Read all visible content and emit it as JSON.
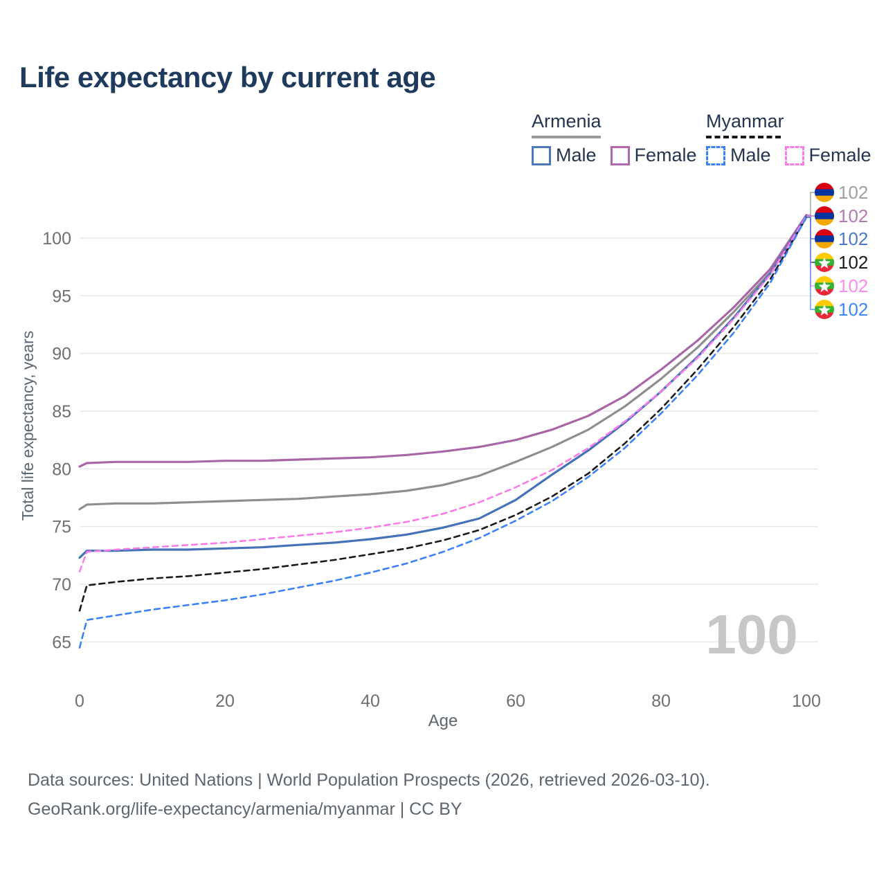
{
  "title": "Life expectancy by current age",
  "legend": {
    "groups": [
      {
        "key": "armenia",
        "country": "Armenia",
        "underline_color": "#9a9a9a",
        "underline_style": "solid",
        "items": [
          {
            "key": "armenia-male",
            "label": "Male",
            "color": "#4d79b8",
            "dashed": false
          },
          {
            "key": "armenia-female",
            "label": "Female",
            "color": "#b567ae",
            "dashed": false
          }
        ]
      },
      {
        "key": "myanmar",
        "country": "Myanmar",
        "underline_color": "#1a1a1a",
        "underline_style": "dashed",
        "items": [
          {
            "key": "myanmar-male",
            "label": "Male",
            "color": "#3b82f6",
            "dashed": true
          },
          {
            "key": "myanmar-female",
            "label": "Female",
            "color": "#fb7ce8",
            "dashed": true
          }
        ]
      }
    ]
  },
  "chart_data": {
    "type": "line",
    "title": "Life expectancy by current age",
    "xlabel": "Age",
    "ylabel": "Total life expectancy, years",
    "x_ticks": [
      0,
      20,
      40,
      60,
      80,
      100
    ],
    "y_ticks": [
      65,
      70,
      75,
      80,
      85,
      90,
      95,
      100
    ],
    "xlim": [
      0,
      100
    ],
    "ylim": [
      63.5,
      103
    ],
    "grid": "horizontal",
    "legend_position": "top-right",
    "watermark": "100",
    "x": [
      0,
      1,
      5,
      10,
      15,
      20,
      25,
      30,
      35,
      40,
      45,
      50,
      55,
      60,
      65,
      70,
      75,
      80,
      85,
      90,
      95,
      100
    ],
    "series": [
      {
        "key": "armenia-both",
        "name": "Armenia (both sexes)",
        "color": "#8e8e8e",
        "dashed": false,
        "end_label": "102",
        "end_label_color": "#a0a0a0",
        "flag": "armenia",
        "values": [
          76.5,
          76.9,
          77.0,
          77.0,
          77.1,
          77.2,
          77.3,
          77.4,
          77.6,
          77.8,
          78.1,
          78.6,
          79.4,
          80.6,
          81.9,
          83.4,
          85.4,
          87.8,
          90.5,
          93.6,
          97.0,
          101.9
        ]
      },
      {
        "key": "armenia-female",
        "name": "Armenia Female",
        "color": "#a865a8",
        "dashed": false,
        "end_label": "102",
        "end_label_color": "#b279b2",
        "flag": "armenia",
        "values": [
          80.2,
          80.5,
          80.6,
          80.6,
          80.6,
          80.7,
          80.7,
          80.8,
          80.9,
          81.0,
          81.2,
          81.5,
          81.9,
          82.5,
          83.4,
          84.6,
          86.3,
          88.6,
          91.1,
          94.0,
          97.3,
          102.0
        ]
      },
      {
        "key": "armenia-male",
        "name": "Armenia Male",
        "color": "#4472b8",
        "dashed": false,
        "end_label": "102",
        "end_label_color": "#4a7bc8",
        "flag": "armenia",
        "values": [
          72.3,
          72.9,
          72.9,
          73.0,
          73.0,
          73.1,
          73.2,
          73.4,
          73.6,
          73.9,
          74.3,
          74.9,
          75.7,
          77.3,
          79.5,
          81.6,
          84.0,
          86.7,
          89.7,
          93.1,
          96.9,
          101.9
        ]
      },
      {
        "key": "myanmar-both",
        "name": "Myanmar (both sexes)",
        "color": "#1a1a1a",
        "dashed": true,
        "end_label": "102",
        "end_label_color": "#1a1a1a",
        "flag": "myanmar",
        "values": [
          67.7,
          69.9,
          70.2,
          70.5,
          70.7,
          71.0,
          71.3,
          71.7,
          72.1,
          72.6,
          73.1,
          73.8,
          74.7,
          76.0,
          77.6,
          79.6,
          82.2,
          85.2,
          88.6,
          92.3,
          96.4,
          101.8
        ]
      },
      {
        "key": "myanmar-female",
        "name": "Myanmar Female",
        "color": "#fb7ce8",
        "dashed": true,
        "end_label": "102",
        "end_label_color": "#fc8df0",
        "flag": "myanmar",
        "values": [
          71.1,
          72.8,
          73.0,
          73.2,
          73.4,
          73.6,
          73.9,
          74.2,
          74.5,
          74.9,
          75.4,
          76.1,
          77.1,
          78.4,
          79.9,
          81.8,
          84.1,
          86.7,
          89.6,
          93.0,
          96.8,
          101.9
        ]
      },
      {
        "key": "myanmar-male",
        "name": "Myanmar Male",
        "color": "#3b82f6",
        "dashed": true,
        "end_label": "102",
        "end_label_color": "#3f86f8",
        "flag": "myanmar",
        "values": [
          64.5,
          66.9,
          67.3,
          67.8,
          68.2,
          68.6,
          69.1,
          69.7,
          70.3,
          71.0,
          71.8,
          72.8,
          74.0,
          75.5,
          77.2,
          79.3,
          81.8,
          84.8,
          88.1,
          91.8,
          96.1,
          101.8
        ]
      }
    ],
    "flag_colors": {
      "armenia": [
        "#D90012",
        "#0033A0",
        "#F2A800"
      ],
      "myanmar": [
        "#FECB00",
        "#34B233",
        "#EA2839"
      ],
      "myanmar_star": "#ffffff"
    },
    "axis_text_color": "#6f6f6f",
    "axis_title_color": "#5c6670",
    "grid_color": "#e9e9e9",
    "watermark_color": "#c7c7c7"
  },
  "footer": {
    "line1": "Data sources: United Nations | World Population Prospects (2026, retrieved 2026-03-10).",
    "line2": "GeoRank.org/life-expectancy/armenia/myanmar | CC BY"
  }
}
